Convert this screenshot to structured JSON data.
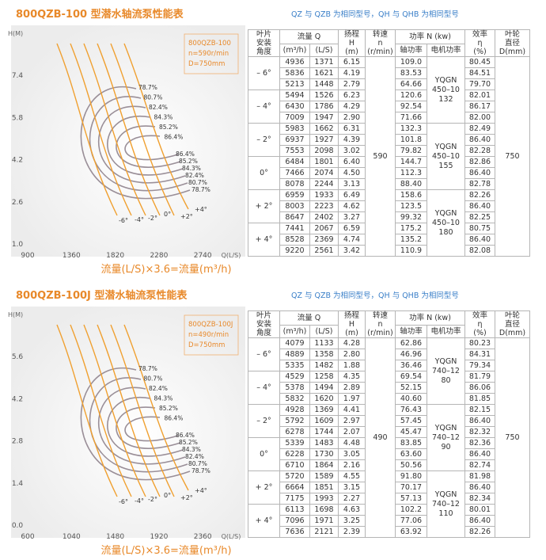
{
  "sections": [
    {
      "title": "800QZB-100 型潜水轴流泵性能表",
      "subtitle": "QZ 与 QZB 为相同型号，QH 与 QHB 为相同型号",
      "chart": {
        "y_axis_label": "H(M)",
        "x_axis_label": "Q(L/S)",
        "yticks": [
          "7.4",
          "5.8",
          "4.2",
          "2.6",
          "1.0"
        ],
        "xticks": [
          "900",
          "1360",
          "1820",
          "2280",
          "2740"
        ],
        "info": [
          "800QZB-100",
          "n=590r/min",
          "D=750mm"
        ],
        "efficiency_labels_upper": [
          "78.7%",
          "80.7%",
          "82.4%",
          "84.3%",
          "85.2%",
          "86.4%"
        ],
        "efficiency_labels_lower": [
          "86.4%",
          "85.2%",
          "84.3%",
          "82.4%",
          "80.7%",
          "78.7%"
        ],
        "angle_labels": [
          "-6°",
          "-4°",
          "-2°",
          "0°",
          "+2°",
          "+4°"
        ],
        "caption": "流量(L/S)×3.6=流量(m³/h)"
      },
      "table": {
        "headers": {
          "angle": "叶片\n安装\n角度",
          "flow": "流量 Q",
          "flow_m3h": "(m³/h)",
          "flow_ls": "(L/S)",
          "head": "扬程\nH\n(m)",
          "speed": "转速\nn\n(r/min)",
          "power": "功率 N (kw)",
          "shaft_power": "轴功率",
          "motor_power": "电机功率",
          "efficiency": "效率\nη\n(%)",
          "diameter": "叶轮\n直径\nD(mm)"
        },
        "speed": "590",
        "diameter": "750",
        "motors": [
          "YQGN\n450–10\n132",
          "YQGN\n450–10\n155",
          "YQGN\n450–10\n180"
        ],
        "groups": [
          {
            "angle": "– 6°",
            "rows": [
              [
                "4936",
                "1371",
                "6.15",
                "109.0",
                "80.45"
              ],
              [
                "5836",
                "1621",
                "4.19",
                "83.53",
                "84.51"
              ],
              [
                "5213",
                "1448",
                "2.79",
                "64.66",
                "79.70"
              ]
            ]
          },
          {
            "angle": "– 4°",
            "rows": [
              [
                "5494",
                "1526",
                "6.23",
                "120.6",
                "82.01"
              ],
              [
                "6430",
                "1786",
                "4.29",
                "92.54",
                "86.17"
              ],
              [
                "7009",
                "1947",
                "2.90",
                "71.66",
                "82.00"
              ]
            ]
          },
          {
            "angle": "– 2°",
            "rows": [
              [
                "5983",
                "1662",
                "6.31",
                "132.3",
                "82.49"
              ],
              [
                "6937",
                "1927",
                "4.39",
                "101.8",
                "86.40"
              ],
              [
                "7553",
                "2098",
                "3.02",
                "79.82",
                "82.28"
              ]
            ]
          },
          {
            "angle": "0°",
            "rows": [
              [
                "6484",
                "1801",
                "6.40",
                "144.7",
                "82.86"
              ],
              [
                "7466",
                "2074",
                "4.50",
                "112.3",
                "86.40"
              ],
              [
                "8078",
                "2244",
                "3.13",
                "88.40",
                "82.78"
              ]
            ]
          },
          {
            "angle": "+ 2°",
            "rows": [
              [
                "6959",
                "1933",
                "6.49",
                "158.6",
                "82.26"
              ],
              [
                "8003",
                "2223",
                "4.62",
                "123.5",
                "86.40"
              ],
              [
                "8647",
                "2402",
                "3.27",
                "99.32",
                "82.25"
              ]
            ]
          },
          {
            "angle": "+ 4°",
            "rows": [
              [
                "7441",
                "2067",
                "6.59",
                "175.2",
                "80.75"
              ],
              [
                "8528",
                "2369",
                "4.74",
                "135.2",
                "86.40"
              ],
              [
                "9220",
                "2561",
                "3.42",
                "110.9",
                "82.08"
              ]
            ]
          }
        ]
      }
    },
    {
      "title": "800QZB-100J 型潜水轴流泵性能表",
      "subtitle": "QZ 与 QZB 为相同型号，QH 与 QHB 为相同型号",
      "chart": {
        "y_axis_label": "H(M)",
        "x_axis_label": "Q(L/S)",
        "yticks": [
          "5.6",
          "4.2",
          "2.8",
          "1.4",
          "0.0"
        ],
        "xticks": [
          "600",
          "1040",
          "1480",
          "1920",
          "2360"
        ],
        "info": [
          "800QZB-100J",
          "n=490r/min",
          "D=750mm"
        ],
        "efficiency_labels_upper": [
          "78.7%",
          "80.7%",
          "82.4%",
          "84.3%",
          "85.2%",
          "86.4%"
        ],
        "efficiency_labels_lower": [
          "86.4%",
          "85.2%",
          "84.3%",
          "82.4%",
          "80.7%",
          "78.7%"
        ],
        "angle_labels": [
          "-6°",
          "-4°",
          "-2°",
          "0°",
          "+2°",
          "+4°"
        ],
        "caption": "流量(L/S)×3.6=流量(m³/h)"
      },
      "table": {
        "headers": {
          "angle": "叶片\n安装\n角度",
          "flow": "流量 Q",
          "flow_m3h": "(m³/h)",
          "flow_ls": "(L/S)",
          "head": "扬程\nH\n(m)",
          "speed": "转速\nn\n(r/min)",
          "power": "功率 N (kw)",
          "shaft_power": "轴功率",
          "motor_power": "电机功率",
          "efficiency": "效率\nη\n(%)",
          "diameter": "叶轮\n直径\nD(mm)"
        },
        "speed": "490",
        "diameter": "750",
        "motors": [
          "YQGN\n740–12\n80",
          "YQGN\n740–12\n90",
          "YQGN\n740–12\n110"
        ],
        "groups": [
          {
            "angle": "– 6°",
            "rows": [
              [
                "4079",
                "1133",
                "4.28",
                "62.86",
                "80.23"
              ],
              [
                "4889",
                "1358",
                "2.80",
                "46.96",
                "84.31"
              ],
              [
                "5335",
                "1482",
                "1.88",
                "36.46",
                "79.34"
              ]
            ]
          },
          {
            "angle": "– 4°",
            "rows": [
              [
                "4529",
                "1258",
                "4.35",
                "69.54",
                "81.79"
              ],
              [
                "5378",
                "1494",
                "2.89",
                "52.15",
                "86.06"
              ],
              [
                "5832",
                "1620",
                "1.97",
                "40.60",
                "81.85"
              ]
            ]
          },
          {
            "angle": "– 2°",
            "rows": [
              [
                "4928",
                "1369",
                "4.41",
                "76.43",
                "82.15"
              ],
              [
                "5792",
                "1609",
                "2.97",
                "57.45",
                "86.40"
              ],
              [
                "6278",
                "1744",
                "2.07",
                "45.47",
                "82.32"
              ]
            ]
          },
          {
            "angle": "0°",
            "rows": [
              [
                "5339",
                "1483",
                "4.48",
                "83.85",
                "82.36"
              ],
              [
                "6228",
                "1730",
                "3.05",
                "63.60",
                "86.40"
              ],
              [
                "6710",
                "1864",
                "2.16",
                "50.56",
                "82.74"
              ]
            ]
          },
          {
            "angle": "+ 2°",
            "rows": [
              [
                "5720",
                "1589",
                "4.55",
                "91.80",
                "81.98"
              ],
              [
                "6664",
                "1851",
                "3.15",
                "70.17",
                "86.40"
              ],
              [
                "7175",
                "1993",
                "2.27",
                "57.13",
                "82.34"
              ]
            ]
          },
          {
            "angle": "+ 4°",
            "rows": [
              [
                "6113",
                "1698",
                "4.63",
                "102.2",
                "80.01"
              ],
              [
                "7096",
                "1971",
                "3.25",
                "77.06",
                "86.40"
              ],
              [
                "7636",
                "2121",
                "2.39",
                "63.92",
                "82.26"
              ]
            ]
          }
        ]
      }
    }
  ]
}
